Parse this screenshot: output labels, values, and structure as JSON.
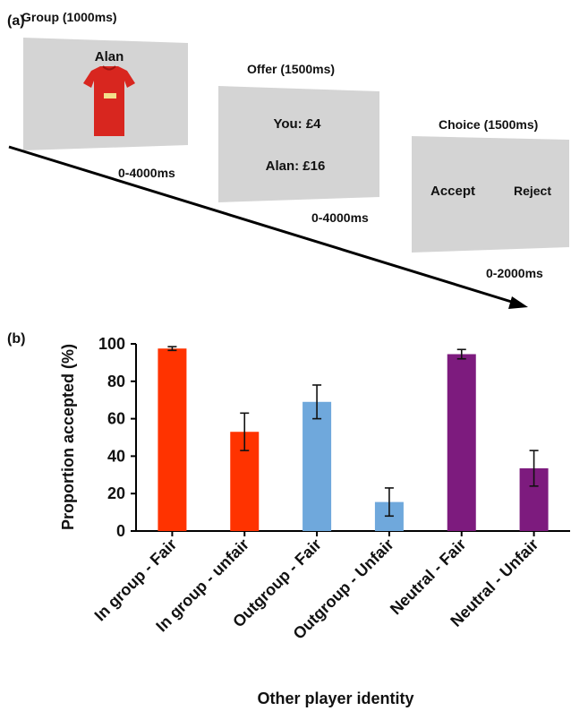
{
  "panel_a": {
    "label": "(a)",
    "screens": [
      {
        "title": "Group (1000ms)",
        "lines": [
          "Alan"
        ],
        "icon": "red-football-shirt-icon"
      },
      {
        "title": "Offer (1500ms)",
        "lines": [
          "You: £4",
          "Alan: £16"
        ]
      },
      {
        "title": "Choice (1500ms)",
        "lines": [
          "Accept",
          "Reject"
        ]
      }
    ],
    "intervals": [
      "0-4000ms",
      "0-4000ms",
      "0-2000ms"
    ],
    "colors": {
      "screen": "#d4d4d4",
      "shirt": "#d8261f"
    }
  },
  "panel_b_label": "(b)",
  "chart_data": {
    "type": "bar",
    "title": "",
    "xlabel": "Other player identity",
    "ylabel": "Proportion accepted (%)",
    "ylim": [
      0,
      100
    ],
    "yticks": [
      0,
      20,
      40,
      60,
      80,
      100
    ],
    "grid": false,
    "categories": [
      "In group - Fair",
      "In group - unfair",
      "Outgroup - Fair",
      "Outgroup - Unfair",
      "Neutral - Fair",
      "Neutral - Unfair"
    ],
    "values": [
      97.5,
      53,
      69,
      15.5,
      94.5,
      33.5
    ],
    "errors": [
      1,
      10,
      9,
      7.5,
      2.5,
      9.5
    ],
    "colors": [
      "#ff3300",
      "#ff3300",
      "#6fa8dc",
      "#6fa8dc",
      "#7d1b7e",
      "#7d1b7e"
    ]
  }
}
